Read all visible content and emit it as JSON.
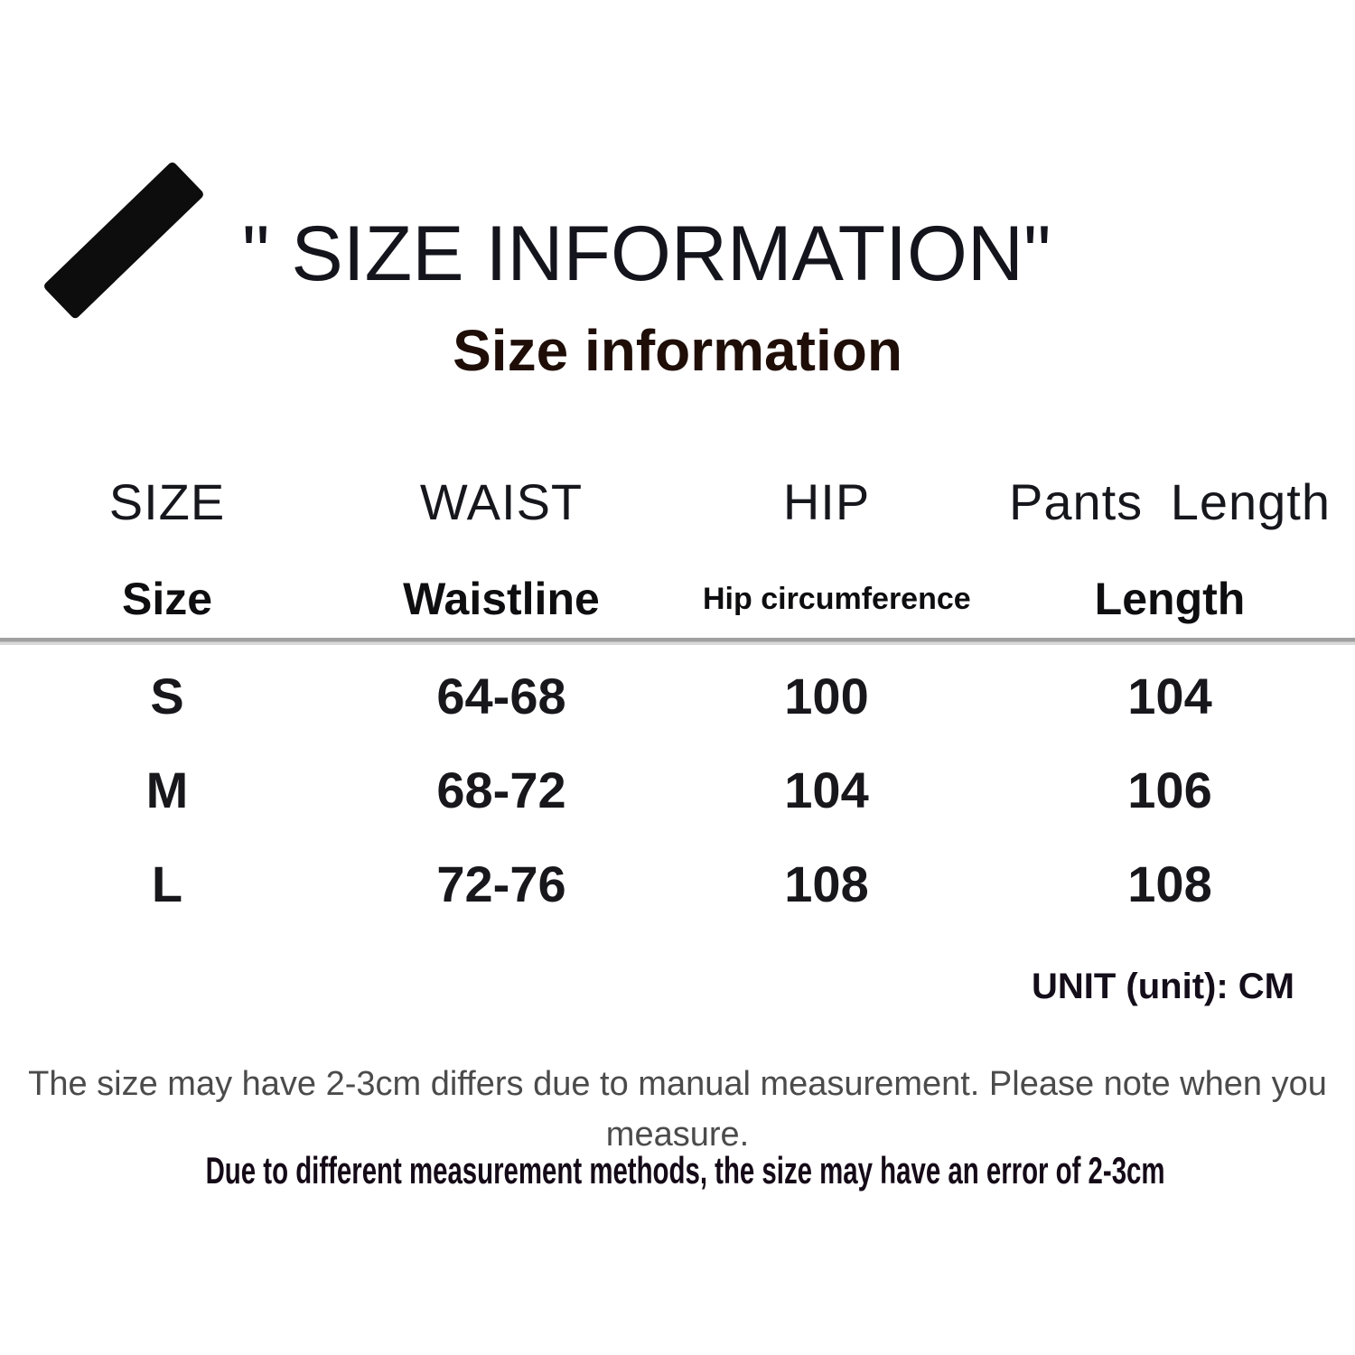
{
  "header": {
    "title": "\" SIZE INFORMATION\"",
    "subtitle": "Size information",
    "decoration_icon": "diagonal-stripe-icon"
  },
  "table": {
    "columns": [
      {
        "en": "SIZE",
        "label": "Size"
      },
      {
        "en": "WAIST",
        "label": "Waistline"
      },
      {
        "en": "HIP",
        "label": "Hip circumference"
      },
      {
        "en": "Pants Length",
        "label": "Length"
      }
    ],
    "rows": [
      {
        "size": "S",
        "waist": "64-68",
        "hip": "100",
        "length": "104"
      },
      {
        "size": "M",
        "waist": "68-72",
        "hip": "104",
        "length": "106"
      },
      {
        "size": "L",
        "waist": "72-76",
        "hip": "108",
        "length": "108"
      }
    ],
    "unit_note": "UNIT (unit): CM"
  },
  "footer": {
    "note": "The size may have 2-3cm differs due to manual measurement. Please note when you\nmeasure.",
    "bold_note": "Due to different measurement methods, the size may have an error of 2-3cm"
  },
  "colors": {
    "background": "#ffffff",
    "text_primary": "#15151c",
    "text_subtitle": "#1f0e08",
    "text_note_gray": "#4b4b4b",
    "divider_gray": "#a0a0a0",
    "stripe_black": "#0d0d0d"
  }
}
